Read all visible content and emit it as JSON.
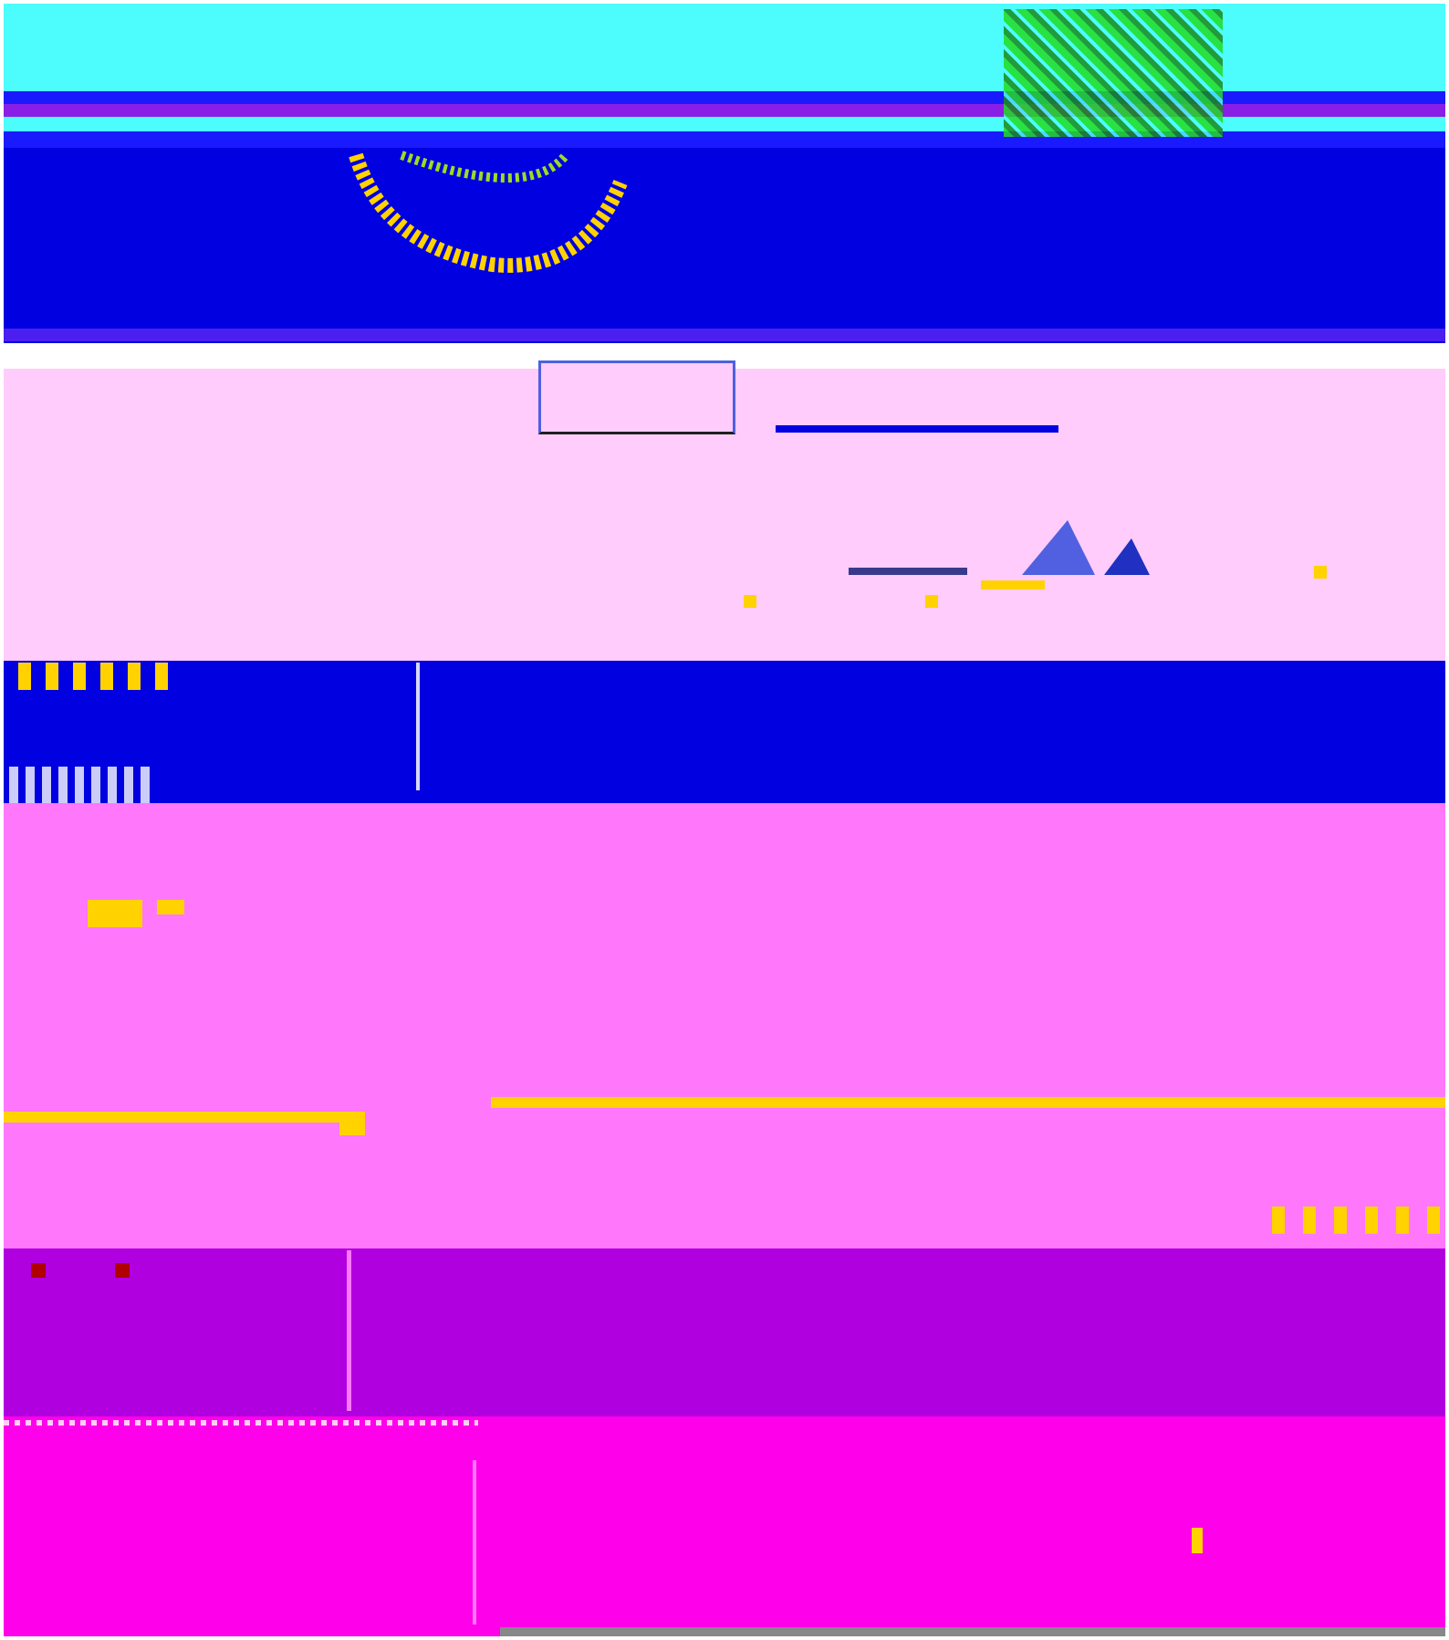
{
  "image": {
    "description_visible_text": "",
    "colors": {
      "cyan": "#4dfcfc",
      "blue": "#0000e0",
      "violet_stripe": "#8a1ee6",
      "light_pink": "#ffccfb",
      "magenta_pink": "#ff77fb",
      "purple": "#b000e0",
      "hot_magenta": "#ff00ea",
      "yellow": "#ffd200",
      "green": "#22dc22",
      "gray": "#888888"
    },
    "palette_order": [
      "cyan",
      "blue",
      "light_pink",
      "blue",
      "magenta_pink",
      "purple",
      "hot_magenta"
    ]
  }
}
